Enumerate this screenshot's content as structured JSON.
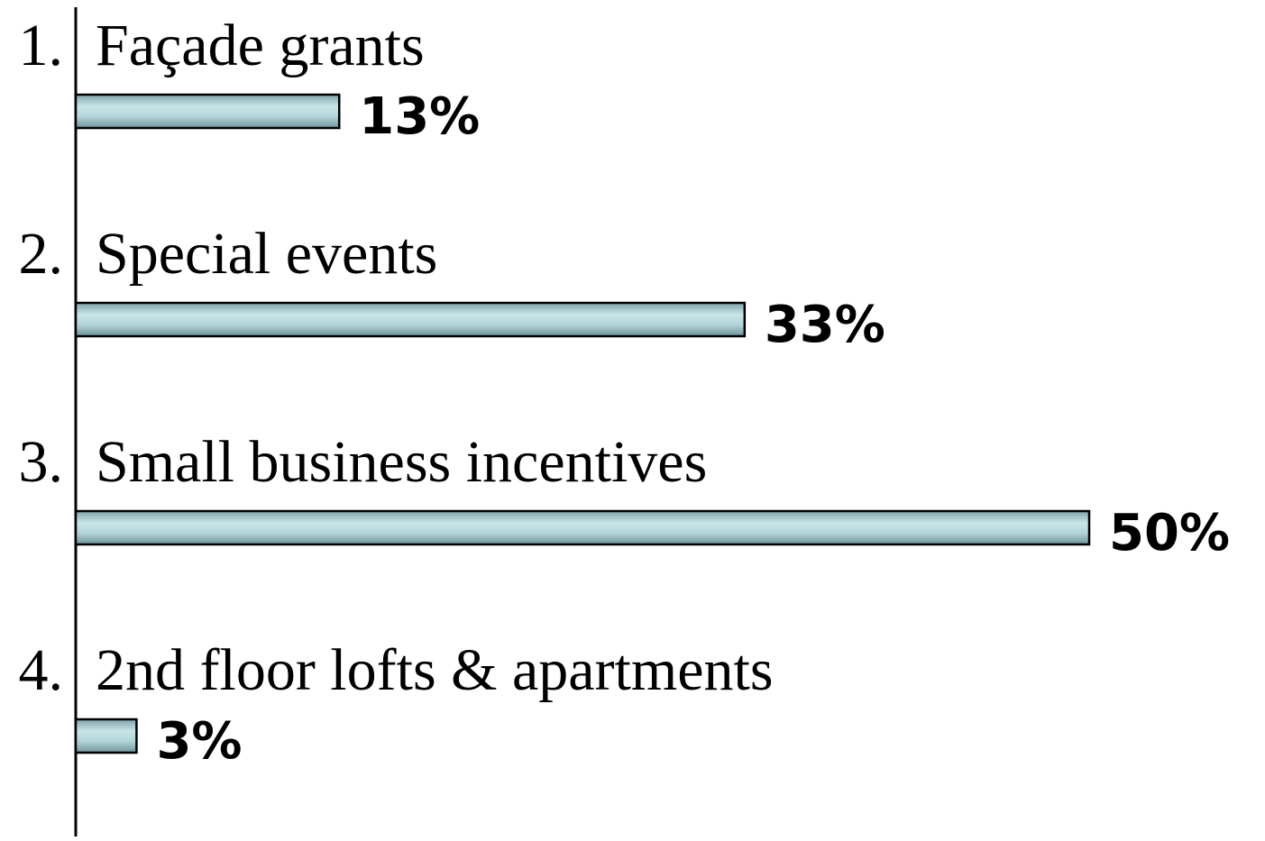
{
  "chart_data": {
    "type": "bar",
    "orientation": "horizontal",
    "numbers": [
      "1.",
      "2.",
      "3.",
      "4."
    ],
    "categories": [
      "Façade grants",
      "Special events",
      "Small business incentives",
      "2nd floor lofts & apartments"
    ],
    "values": [
      13,
      33,
      50,
      3
    ],
    "value_labels": [
      "13%",
      "33%",
      "50%",
      "3%"
    ],
    "color": "#b4d6d8",
    "xlim": [
      0,
      50
    ]
  }
}
